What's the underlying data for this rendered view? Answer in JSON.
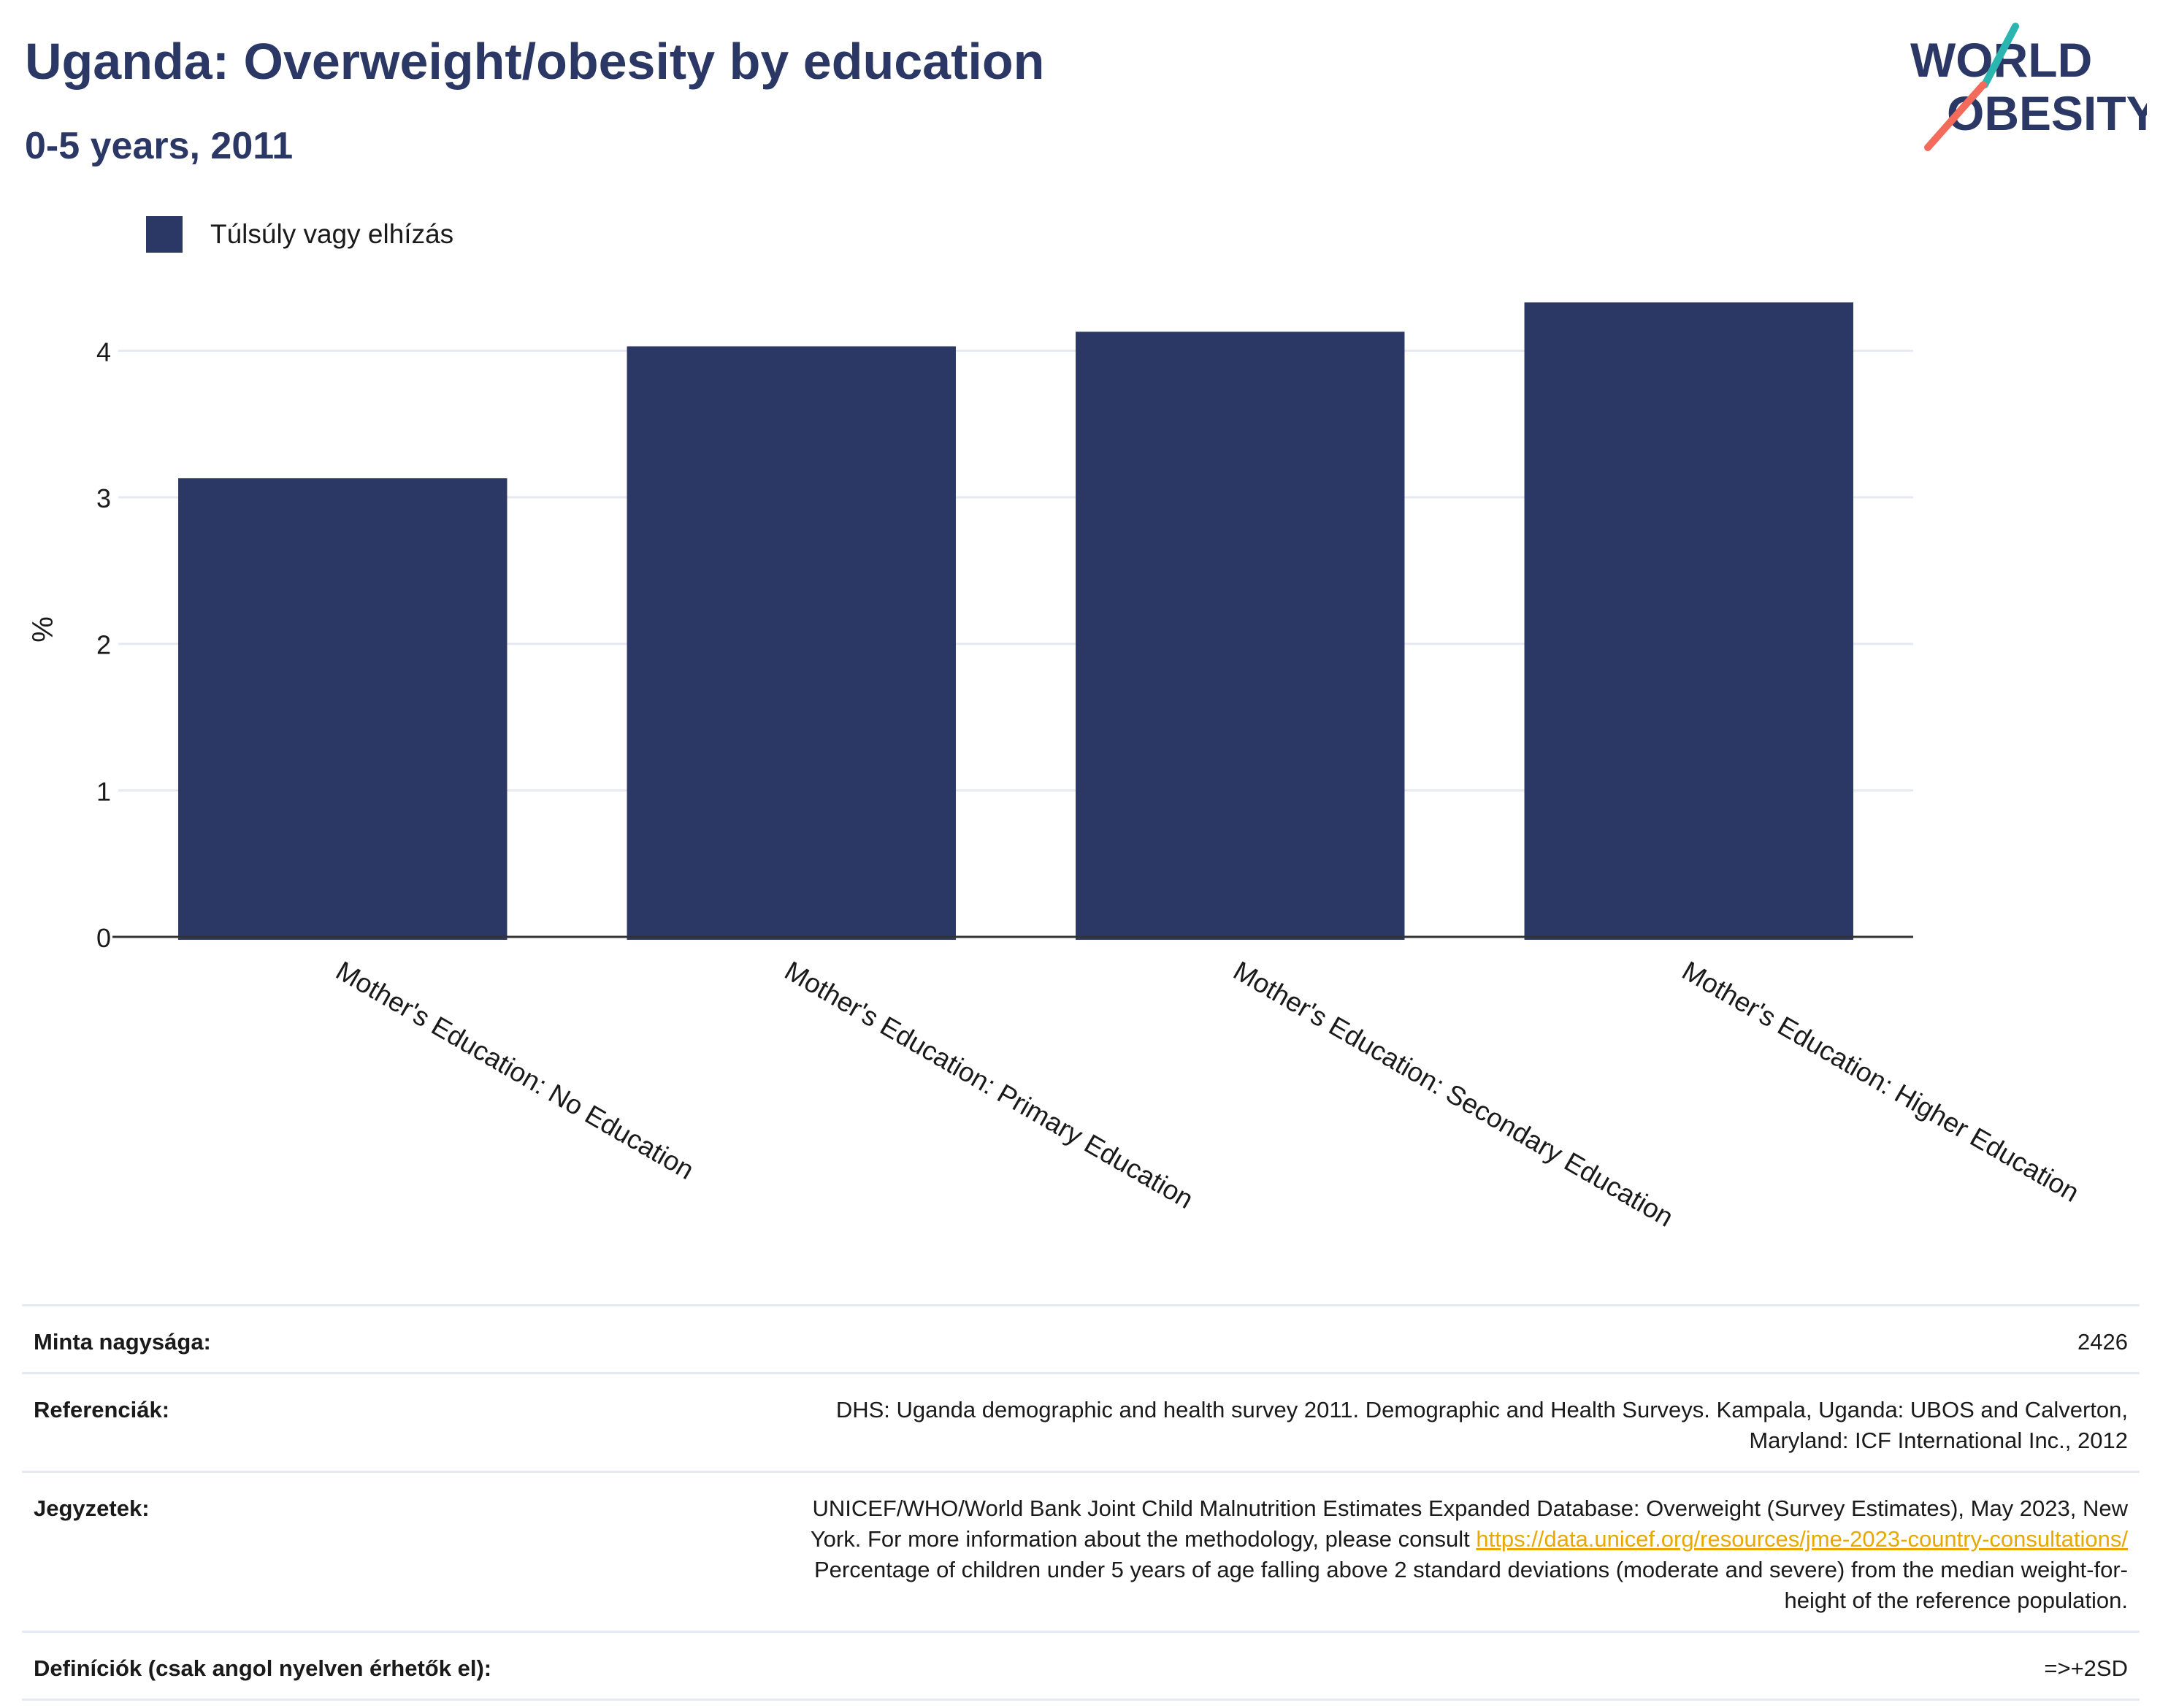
{
  "title": "Uganda: Overweight/obesity by education",
  "subtitle": "0-5 years, 2011",
  "logo": {
    "line1": "WORLD",
    "line2": "OBESITY",
    "accent_teal": "#2ab5b0",
    "accent_coral": "#f26b5b"
  },
  "legend": {
    "label": "Túlsúly vagy elhízás",
    "color": "#2b3765"
  },
  "chart_data": {
    "type": "bar",
    "categories": [
      "Mother's Education: No Education",
      "Mother's Education: Primary Education",
      "Mother's Education: Secondary Education",
      "Mother's Education: Higher Education"
    ],
    "series": [
      {
        "name": "Túlsúly vagy elhízás",
        "values": [
          3.13,
          4.03,
          4.13,
          4.33
        ],
        "color": "#2b3765"
      }
    ],
    "ylabel": "%",
    "ylim": [
      0,
      4.6
    ],
    "yticks": [
      "0",
      "1",
      "2",
      "3",
      "4"
    ],
    "grid": true,
    "legend_position": "top-left"
  },
  "info": {
    "sample": {
      "label": "Minta nagysága:",
      "value": "2426"
    },
    "references": {
      "label": "Referenciák:",
      "line1": "DHS: Uganda demographic and health survey 2011. Demographic and Health Surveys. Kampala, Uganda: UBOS and Calverton,",
      "line2": "Maryland: ICF International Inc., 2012"
    },
    "notes": {
      "label": "Jegyzetek:",
      "line1": "UNICEF/WHO/World Bank Joint Child Malnutrition Estimates Expanded Database: Overweight (Survey Estimates), May 2023, New",
      "line2_prefix": "York. For more information about the methodology, please consult",
      "link": "https://data.unicef.org/resources/jme-2023-country-consultations/",
      "line3": "Percentage of children under 5 years of age falling above 2 standard deviations (moderate and severe) from the median weight-for-",
      "line4": "height of the reference population."
    },
    "definitions": {
      "label": "Definíciók (csak angol nyelven érhetők el):",
      "value": "=>+2SD"
    }
  }
}
